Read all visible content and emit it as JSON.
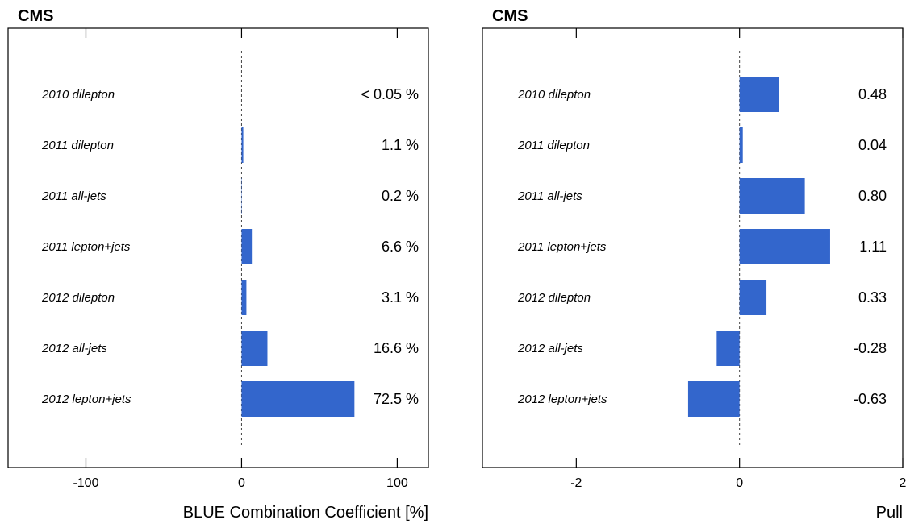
{
  "colors": {
    "bar": "#3366cc",
    "axis": "#000000"
  },
  "chart_data": [
    {
      "type": "bar",
      "orientation": "horizontal",
      "experiment_label": "CMS",
      "xlabel": "BLUE Combination Coefficient [%]",
      "xlim": [
        -150,
        120
      ],
      "xticks": [
        "-100",
        "0",
        "100"
      ],
      "categories": [
        "2010 dilepton",
        "2011 dilepton",
        "2011 all-jets",
        "2011 lepton+jets",
        "2012 dilepton",
        "2012 all-jets",
        "2012 lepton+jets"
      ],
      "values": [
        0.0,
        1.1,
        0.2,
        6.6,
        3.1,
        16.6,
        72.5
      ],
      "value_labels": [
        "< 0.05 %",
        "1.1 %",
        "0.2 %",
        "6.6 %",
        "3.1 %",
        "16.6 %",
        "72.5 %"
      ],
      "reference_line": 0
    },
    {
      "type": "bar",
      "orientation": "horizontal",
      "experiment_label": "CMS",
      "xlabel": "Pull",
      "xlim": [
        -3.15,
        2
      ],
      "xticks": [
        "-2",
        "0",
        "2"
      ],
      "categories": [
        "2010 dilepton",
        "2011 dilepton",
        "2011 all-jets",
        "2011 lepton+jets",
        "2012 dilepton",
        "2012 all-jets",
        "2012 lepton+jets"
      ],
      "values": [
        0.48,
        0.04,
        0.8,
        1.11,
        0.33,
        -0.28,
        -0.63
      ],
      "value_labels": [
        "0.48",
        "0.04",
        "0.80",
        "1.11",
        "0.33",
        "-0.28",
        "-0.63"
      ],
      "reference_line": 0
    }
  ]
}
